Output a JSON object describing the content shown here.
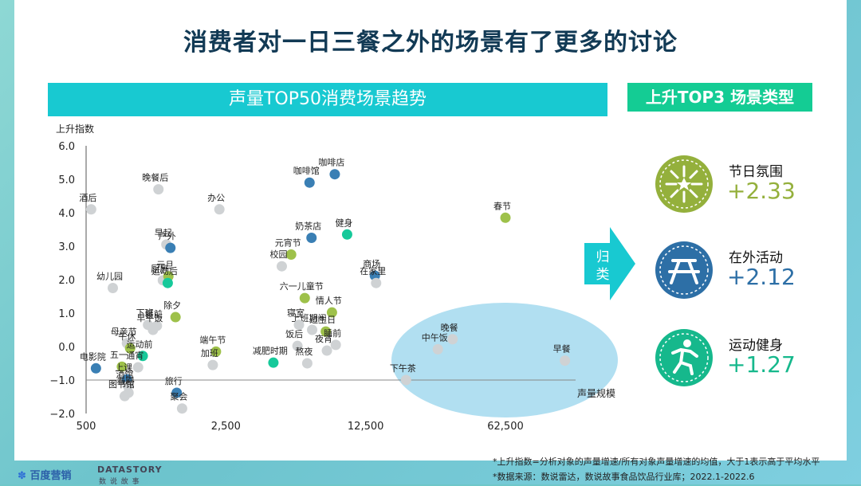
{
  "title": "消费者对一日三餐之外的场景有了更多的讨论",
  "left_banner": "声量TOP50消费场景趋势",
  "right_banner": "上升TOP3 场景类型",
  "arrow_label": "归类",
  "chart_data": {
    "type": "scatter",
    "ylabel": "上升指数",
    "xlabel": "声量规模",
    "x_ticks": [
      "500",
      "2,500",
      "12,500",
      "62,500"
    ],
    "y_ticks": [
      "6.0",
      "5.0",
      "4.0",
      "3.0",
      "2.0",
      "1.0",
      "0.0",
      "−1.0",
      "−2.0"
    ],
    "ylim": [
      -2,
      6
    ],
    "x_scale": "log",
    "colors": {
      "blue": "#3a7fb4",
      "green": "#9ec14a",
      "teal": "#16c99a",
      "grey": "#cfd2d4",
      "bubble": "#a9dcf0"
    },
    "points": [
      {
        "label": "酒后",
        "x": 530,
        "y": 4.1,
        "c": "grey"
      },
      {
        "label": "晚餐后",
        "x": 1150,
        "y": 4.7,
        "c": "grey"
      },
      {
        "label": "办公",
        "x": 2320,
        "y": 4.1,
        "c": "grey"
      },
      {
        "label": "早起",
        "x": 1260,
        "y": 3.05,
        "c": "grey"
      },
      {
        "label": "户外",
        "x": 1320,
        "y": 2.95,
        "c": "blue"
      },
      {
        "label": "幼儿园",
        "x": 680,
        "y": 1.75,
        "c": "grey"
      },
      {
        "label": "厨房",
        "x": 1210,
        "y": 1.98,
        "c": "grey"
      },
      {
        "label": "元旦",
        "x": 1290,
        "y": 2.1,
        "c": "green"
      },
      {
        "label": "运动后",
        "x": 1280,
        "y": 1.9,
        "c": "teal"
      },
      {
        "label": "下班",
        "x": 1020,
        "y": 0.65,
        "c": "grey"
      },
      {
        "label": "餐前",
        "x": 1130,
        "y": 0.62,
        "c": "grey"
      },
      {
        "label": "除夕",
        "x": 1400,
        "y": 0.88,
        "c": "green"
      },
      {
        "label": "早午饭",
        "x": 1080,
        "y": 0.5,
        "c": "grey"
      },
      {
        "label": "母亲节",
        "x": 800,
        "y": 0.1,
        "c": "grey"
      },
      {
        "label": "端午节",
        "x": 2230,
        "y": -0.15,
        "c": "green"
      },
      {
        "label": "午休",
        "x": 830,
        "y": -0.05,
        "c": "green"
      },
      {
        "label": "运动前",
        "x": 960,
        "y": -0.28,
        "c": "teal"
      },
      {
        "label": "五一",
        "x": 755,
        "y": -0.6,
        "c": "green"
      },
      {
        "label": "通宵",
        "x": 910,
        "y": -0.62,
        "c": "grey"
      },
      {
        "label": "加班",
        "x": 2150,
        "y": -0.55,
        "c": "grey"
      },
      {
        "label": "电影院",
        "x": 560,
        "y": -0.65,
        "c": "blue"
      },
      {
        "label": "上课",
        "x": 800,
        "y": -0.98,
        "c": "blue"
      },
      {
        "label": "酒馆",
        "x": 810,
        "y": -1.18,
        "c": "grey"
      },
      {
        "label": "春剧",
        "x": 815,
        "y": -1.38,
        "c": "grey"
      },
      {
        "label": "图书馆",
        "x": 780,
        "y": -1.48,
        "c": "grey"
      },
      {
        "label": "旅行",
        "x": 1420,
        "y": -1.38,
        "c": "blue"
      },
      {
        "label": "聚会",
        "x": 1510,
        "y": -1.85,
        "c": "grey"
      },
      {
        "label": "咖啡馆",
        "x": 6550,
        "y": 4.9,
        "c": "blue"
      },
      {
        "label": "咖啡店",
        "x": 8760,
        "y": 5.15,
        "c": "blue"
      },
      {
        "label": "奶茶店",
        "x": 6700,
        "y": 3.25,
        "c": "blue"
      },
      {
        "label": "健身",
        "x": 10100,
        "y": 3.35,
        "c": "teal"
      },
      {
        "label": "元宵节",
        "x": 5300,
        "y": 2.75,
        "c": "green"
      },
      {
        "label": "校园",
        "x": 4760,
        "y": 2.4,
        "c": "grey"
      },
      {
        "label": "商场",
        "x": 13900,
        "y": 2.12,
        "c": "blue"
      },
      {
        "label": "在家里",
        "x": 14100,
        "y": 1.9,
        "c": "grey"
      },
      {
        "label": "六一儿童节",
        "x": 6200,
        "y": 1.45,
        "c": "green"
      },
      {
        "label": "情人节",
        "x": 8480,
        "y": 1.02,
        "c": "green"
      },
      {
        "label": "上班期间",
        "x": 6750,
        "y": 0.5,
        "c": "grey"
      },
      {
        "label": "寝室",
        "x": 5800,
        "y": 0.65,
        "c": "grey"
      },
      {
        "label": "过生日",
        "x": 7900,
        "y": 0.45,
        "c": "green"
      },
      {
        "label": "饭后",
        "x": 5700,
        "y": 0.02,
        "c": "grey"
      },
      {
        "label": "睡前",
        "x": 8860,
        "y": 0.05,
        "c": "grey"
      },
      {
        "label": "夜宵",
        "x": 8000,
        "y": -0.12,
        "c": "grey"
      },
      {
        "label": "熬夜",
        "x": 6380,
        "y": -0.5,
        "c": "grey"
      },
      {
        "label": "减肥时期",
        "x": 4320,
        "y": -0.48,
        "c": "teal"
      },
      {
        "label": "下午茶",
        "x": 19900,
        "y": -1.0,
        "c": "grey"
      },
      {
        "label": "中午饭",
        "x": 28700,
        "y": -0.08,
        "c": "grey"
      },
      {
        "label": "晚餐",
        "x": 34000,
        "y": 0.22,
        "c": "grey"
      },
      {
        "label": "春节",
        "x": 62500,
        "y": 3.85,
        "c": "green"
      },
      {
        "label": "早餐",
        "x": 124000,
        "y": -0.42,
        "c": "grey"
      }
    ]
  },
  "categories": [
    {
      "label": "节日氛围",
      "value": "+2.33",
      "color": "#94b03c",
      "icon": "festival-icon"
    },
    {
      "label": "在外活动",
      "value": "+2.12",
      "color": "#2d6fa6",
      "icon": "outdoor-table-icon"
    },
    {
      "label": "运动健身",
      "value": "+1.27",
      "color": "#16b88c",
      "icon": "fitness-icon"
    }
  ],
  "footnote_1": "*上升指数=分析对象的声量增速/所有对象声量增速的均值，大于1表示高于平均水平",
  "footnote_2": "*数据来源：数说雷达，数说故事食品饮品行业库；2022.1-2022.6",
  "brand_baidu": "百度营销",
  "brand_datastory": "DATASTORY",
  "brand_datastory_cn": "数 说 故 事"
}
